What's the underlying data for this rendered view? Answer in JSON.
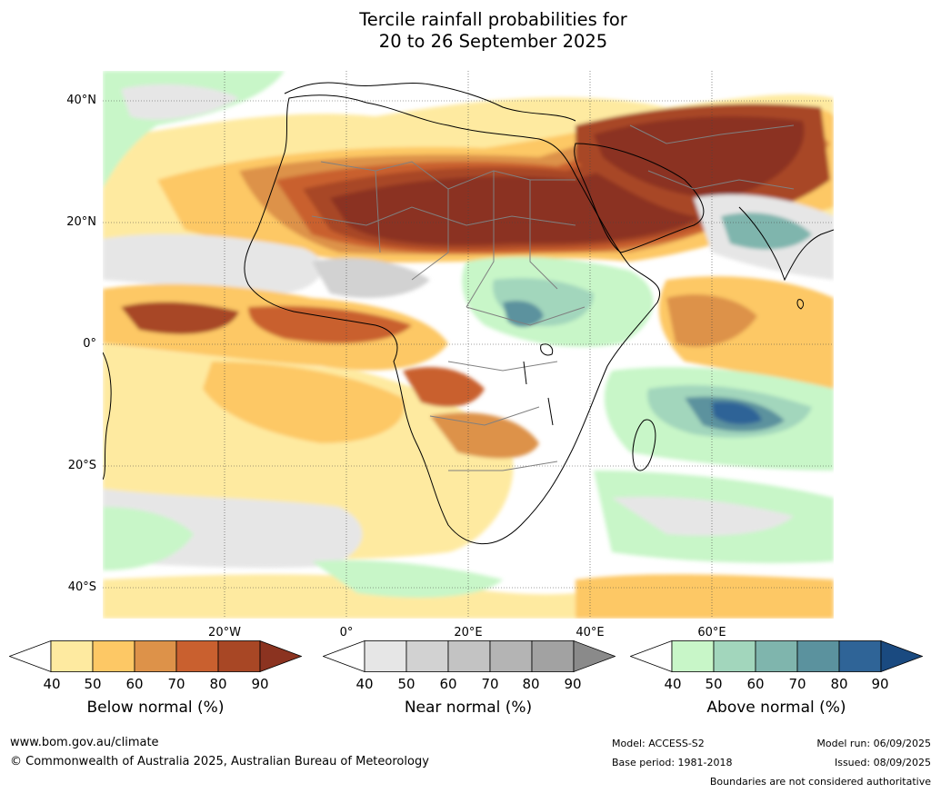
{
  "title": {
    "line1": "Tercile rainfall probabilities for",
    "line2": "20 to 26 September 2025"
  },
  "map": {
    "lat_labels": [
      "40°N",
      "20°N",
      "0°",
      "20°S",
      "40°S"
    ],
    "lon_labels": [
      "20°W",
      "0°",
      "20°E",
      "40°E",
      "60°E"
    ]
  },
  "colorbars": [
    {
      "name": "below",
      "title": "Below normal (%)",
      "ticks": [
        "40",
        "50",
        "60",
        "70",
        "80",
        "90"
      ],
      "colors": [
        "#ffffff",
        "#feeaa0",
        "#fdc865",
        "#dd9249",
        "#c9602f",
        "#a84725",
        "#8b3320"
      ]
    },
    {
      "name": "near",
      "title": "Near normal (%)",
      "ticks": [
        "40",
        "50",
        "60",
        "70",
        "80",
        "90"
      ],
      "colors": [
        "#ffffff",
        "#e6e6e6",
        "#d2d2d2",
        "#c3c3c3",
        "#b4b4b4",
        "#a2a2a2",
        "#8a8a8a"
      ]
    },
    {
      "name": "above",
      "title": "Above normal (%)",
      "ticks": [
        "40",
        "50",
        "60",
        "70",
        "80",
        "90"
      ],
      "colors": [
        "#ffffff",
        "#c8f6c8",
        "#a2d6bc",
        "#7fb5ad",
        "#5b929e",
        "#2f6497",
        "#1a4a80"
      ]
    }
  ],
  "footer": {
    "website": "www.bom.gov.au/climate",
    "copyright": "© Commonwealth of Australia 2025, Australian Bureau of Meteorology",
    "model": "Model: ACCESS-S2",
    "base_period": "Base period: 1981-2018",
    "model_run": "Model run: 06/09/2025",
    "issued": "Issued: 08/09/2025",
    "disclaimer": "Boundaries are not considered authoritative"
  }
}
